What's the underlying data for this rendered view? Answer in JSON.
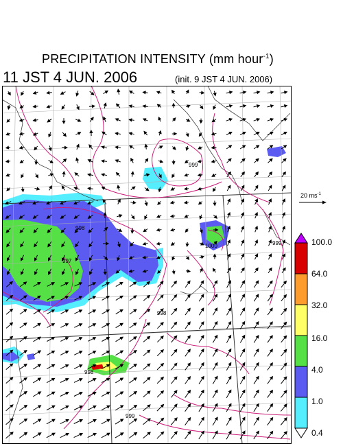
{
  "header": {
    "title_main": "PRECIPITATION INTENSITY (mm hour",
    "title_sup": "-1",
    "title_close": ")",
    "datetime": "11 JST 4 JUN. 2006",
    "init": "(init. 9 JST 4 JUN. 2006)"
  },
  "wind_scale": {
    "value": "20 ms",
    "sup": "-1"
  },
  "colorbar": {
    "labels": [
      "100.0",
      "64.0",
      "32.0",
      "16.0",
      "4.0",
      "1.0",
      "0.4"
    ],
    "colors": [
      "#d80000",
      "#ff9c2e",
      "#ffff66",
      "#55e045",
      "#5b5bf2",
      "#55eeff"
    ],
    "top_triangle": "#c000ff",
    "bottom_triangle": "#ffffff"
  },
  "map": {
    "background": "#ffffff",
    "isobar_color": "#cc1f7a",
    "isobar_labels": [
      "998",
      "997",
      "998",
      "999",
      "999",
      "998",
      "999",
      "1000"
    ]
  }
}
